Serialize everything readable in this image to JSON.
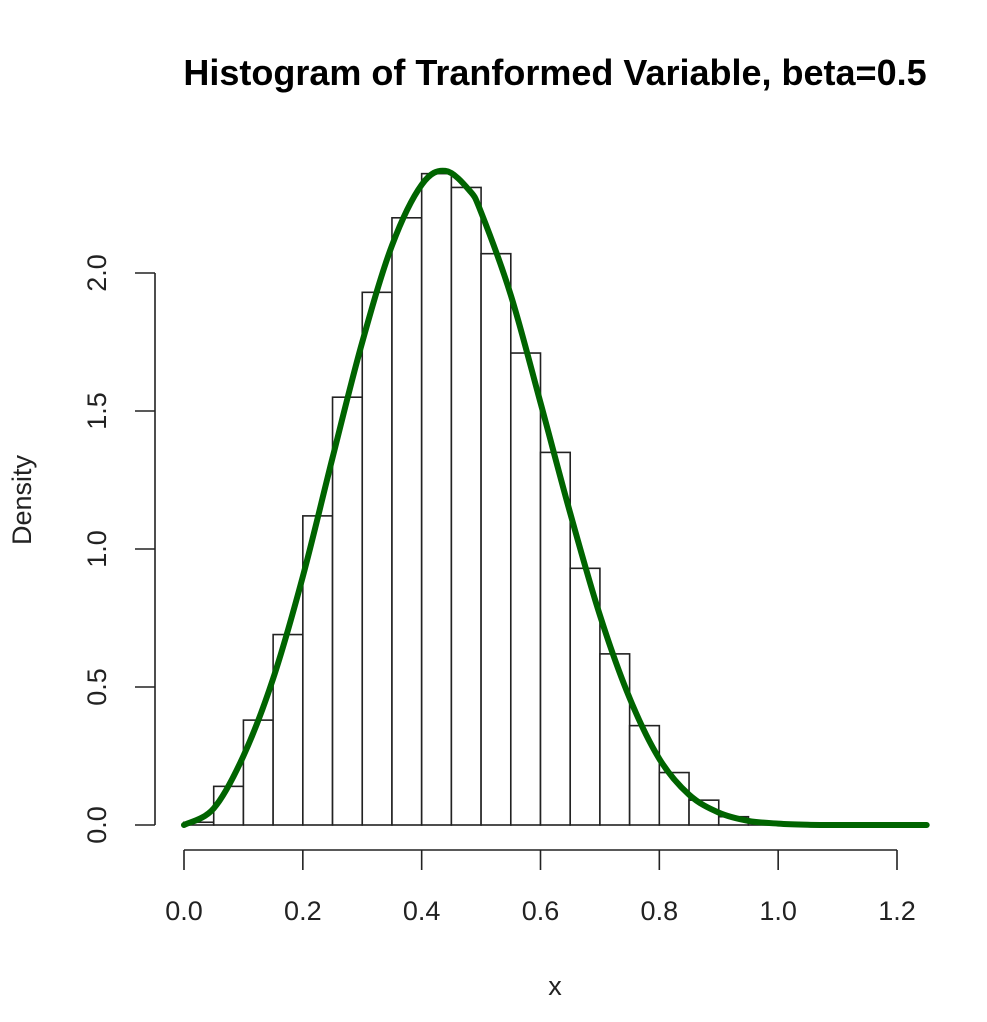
{
  "chart_data": {
    "type": "histogram",
    "title": "Histogram of Tranformed Variable, beta=0.5",
    "xlabel": "x",
    "ylabel": "Density",
    "xlim": [
      0,
      1.25
    ],
    "ylim": [
      0,
      2.35
    ],
    "x_ticks": [
      0.0,
      0.2,
      0.4,
      0.6,
      0.8,
      1.0,
      1.2
    ],
    "x_tick_labels": [
      "0.0",
      "0.2",
      "0.4",
      "0.6",
      "0.8",
      "1.0",
      "1.2"
    ],
    "y_ticks": [
      0.0,
      0.5,
      1.0,
      1.5,
      2.0
    ],
    "y_tick_labels": [
      "0.0",
      "0.5",
      "1.0",
      "1.5",
      "2.0"
    ],
    "bin_width": 0.05,
    "bins": [
      {
        "start": 0.0,
        "end": 0.05,
        "density": 0.01
      },
      {
        "start": 0.05,
        "end": 0.1,
        "density": 0.14
      },
      {
        "start": 0.1,
        "end": 0.15,
        "density": 0.38
      },
      {
        "start": 0.15,
        "end": 0.2,
        "density": 0.69
      },
      {
        "start": 0.2,
        "end": 0.25,
        "density": 1.12
      },
      {
        "start": 0.25,
        "end": 0.3,
        "density": 1.55
      },
      {
        "start": 0.3,
        "end": 0.35,
        "density": 1.93
      },
      {
        "start": 0.35,
        "end": 0.4,
        "density": 2.2
      },
      {
        "start": 0.4,
        "end": 0.45,
        "density": 2.36
      },
      {
        "start": 0.45,
        "end": 0.5,
        "density": 2.31
      },
      {
        "start": 0.5,
        "end": 0.55,
        "density": 2.07
      },
      {
        "start": 0.55,
        "end": 0.6,
        "density": 1.71
      },
      {
        "start": 0.6,
        "end": 0.65,
        "density": 1.35
      },
      {
        "start": 0.65,
        "end": 0.7,
        "density": 0.93
      },
      {
        "start": 0.7,
        "end": 0.75,
        "density": 0.62
      },
      {
        "start": 0.75,
        "end": 0.8,
        "density": 0.36
      },
      {
        "start": 0.8,
        "end": 0.85,
        "density": 0.19
      },
      {
        "start": 0.85,
        "end": 0.9,
        "density": 0.09
      },
      {
        "start": 0.9,
        "end": 0.95,
        "density": 0.03
      },
      {
        "start": 0.95,
        "end": 1.0,
        "density": 0.01
      }
    ],
    "curve": {
      "color": "#006400",
      "x": [
        0.0,
        0.05,
        0.1,
        0.15,
        0.2,
        0.25,
        0.3,
        0.35,
        0.4,
        0.44,
        0.48,
        0.5,
        0.55,
        0.6,
        0.65,
        0.7,
        0.75,
        0.8,
        0.85,
        0.9,
        0.95,
        1.0,
        1.05,
        1.1,
        1.25
      ],
      "y": [
        0.0,
        0.06,
        0.25,
        0.53,
        0.9,
        1.33,
        1.75,
        2.1,
        2.32,
        2.37,
        2.3,
        2.22,
        1.92,
        1.53,
        1.13,
        0.76,
        0.46,
        0.24,
        0.11,
        0.045,
        0.015,
        0.005,
        0.001,
        0.0,
        0.0
      ]
    }
  }
}
